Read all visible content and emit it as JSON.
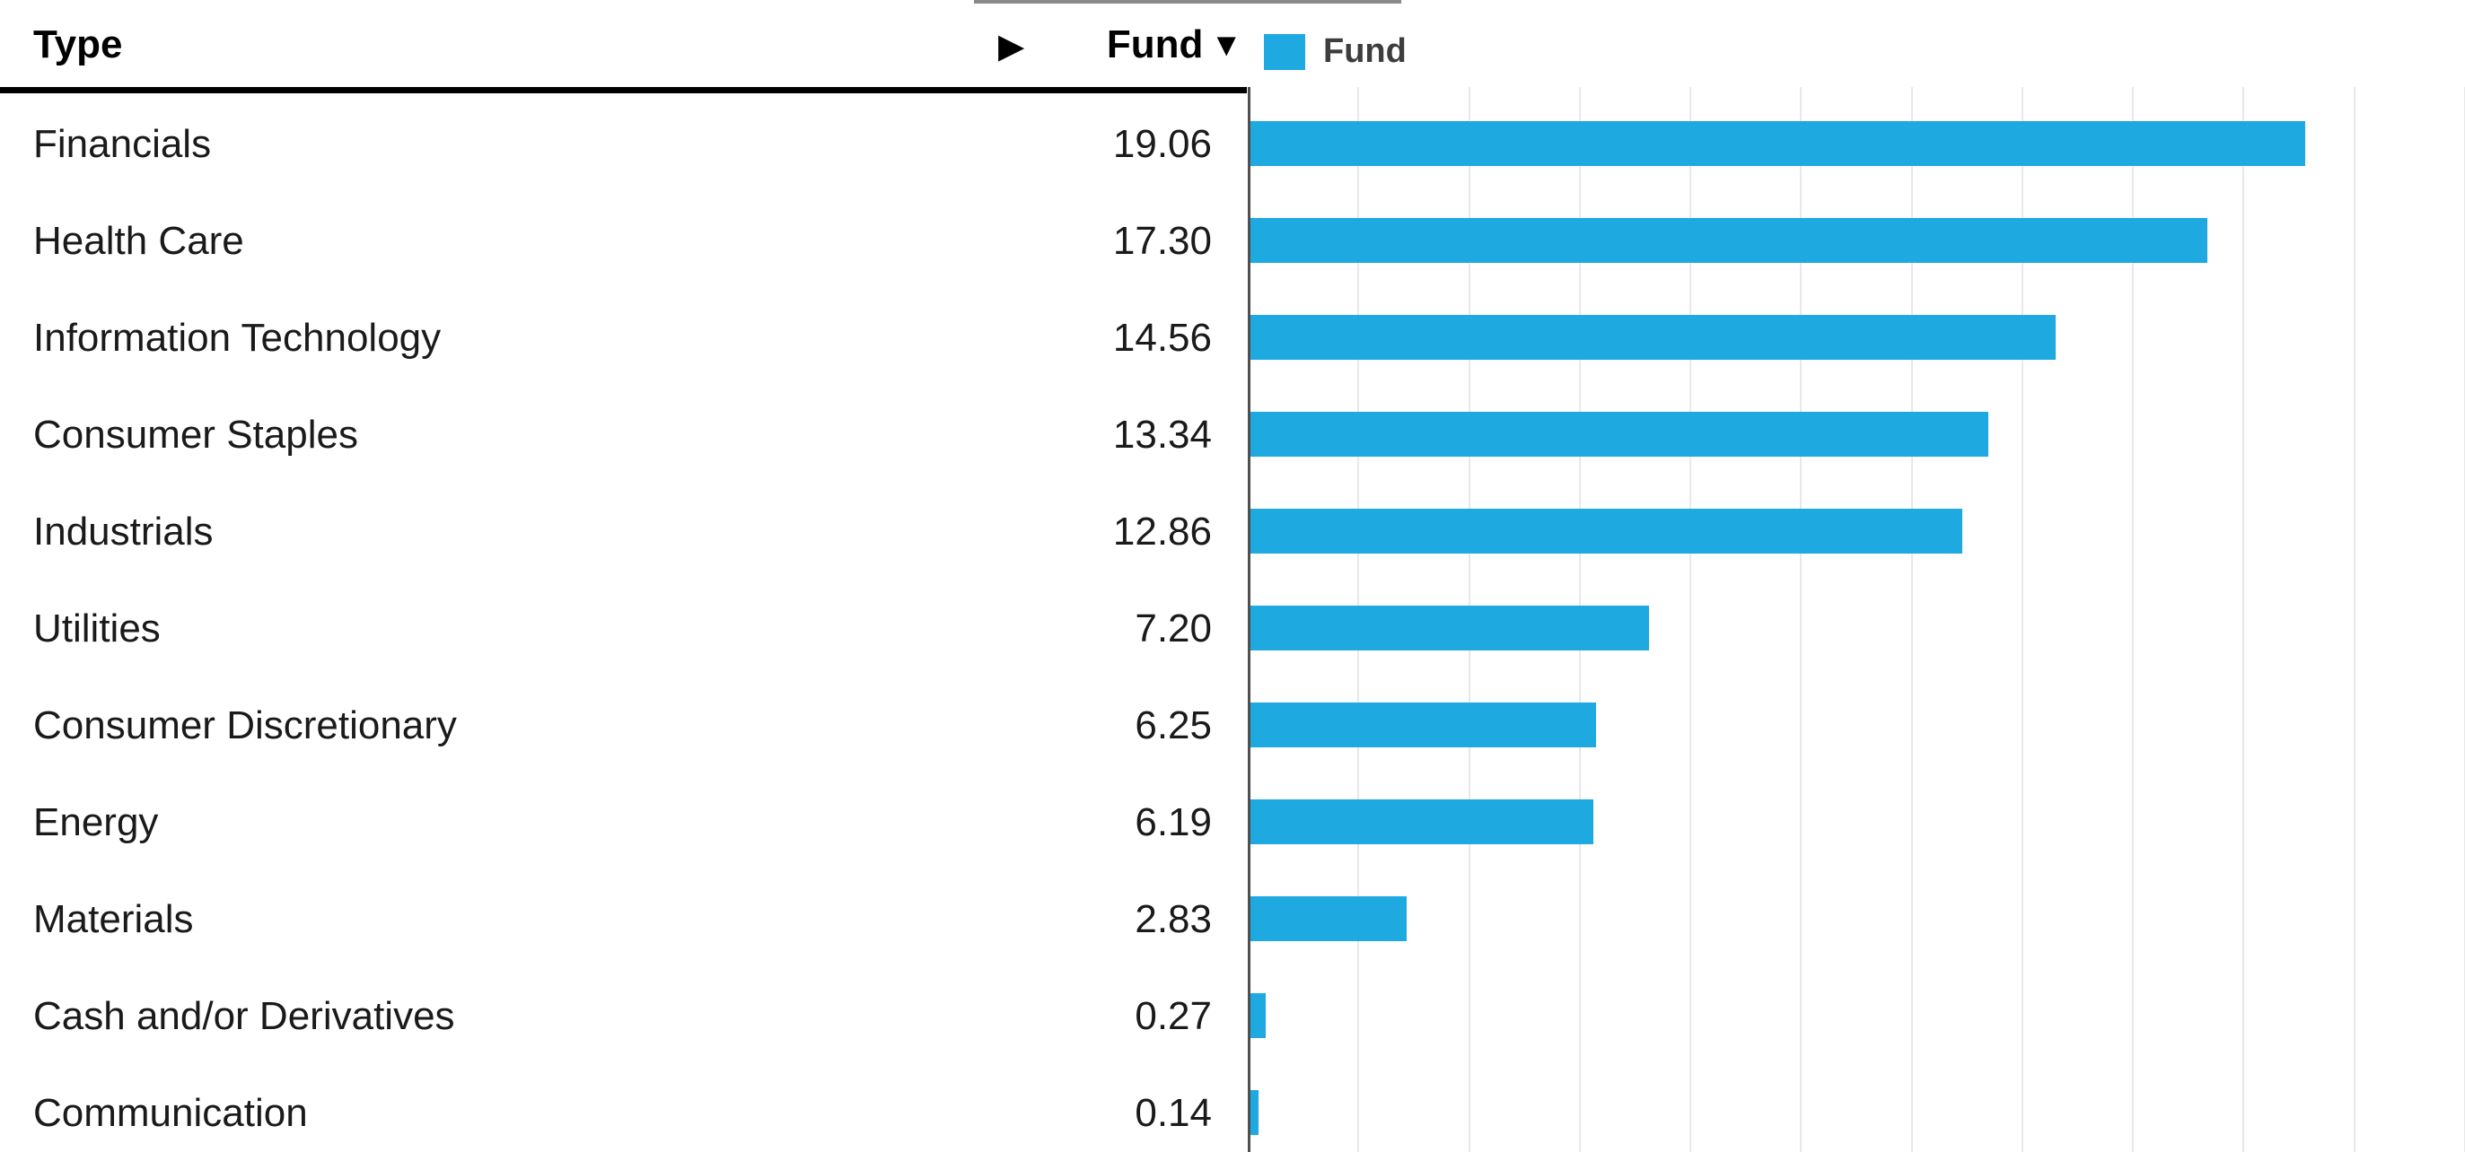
{
  "table": {
    "type_column_label": "Type",
    "fund_column_label": "Fund",
    "sort": {
      "column": "Fund",
      "direction": "desc",
      "icon": "▼"
    },
    "expand_icon": "▶",
    "rows": [
      {
        "type": "Financials",
        "fund": "19.06"
      },
      {
        "type": "Health Care",
        "fund": "17.30"
      },
      {
        "type": "Information Technology",
        "fund": "14.56"
      },
      {
        "type": "Consumer Staples",
        "fund": "13.34"
      },
      {
        "type": "Industrials",
        "fund": "12.86"
      },
      {
        "type": "Utilities",
        "fund": "7.20"
      },
      {
        "type": "Consumer Discretionary",
        "fund": "6.25"
      },
      {
        "type": "Energy",
        "fund": "6.19"
      },
      {
        "type": "Materials",
        "fund": "2.83"
      },
      {
        "type": "Cash and/or Derivatives",
        "fund": "0.27"
      },
      {
        "type": "Communication",
        "fund": "0.14"
      }
    ]
  },
  "legend": {
    "items": [
      {
        "label": "Fund",
        "color": "#1EA9E0"
      }
    ]
  },
  "chart_data": {
    "type": "bar",
    "orientation": "horizontal",
    "title": "",
    "categories": [
      "Financials",
      "Health Care",
      "Information Technology",
      "Consumer Staples",
      "Industrials",
      "Utilities",
      "Consumer Discretionary",
      "Energy",
      "Materials",
      "Cash and/or Derivatives",
      "Communication"
    ],
    "series": [
      {
        "name": "Fund",
        "values": [
          19.06,
          17.3,
          14.56,
          13.34,
          12.86,
          7.2,
          6.25,
          6.19,
          2.83,
          0.27,
          0.14
        ]
      }
    ],
    "xlabel": "",
    "ylabel": "Type",
    "xlim": [
      0,
      22
    ],
    "gridline_step": 2,
    "grid": true,
    "legend_position": "top-right",
    "bar_color": "#1EA9E0",
    "sorted": "descending by Fund"
  },
  "colors": {
    "bar": "#1EA9E0",
    "gridline": "#e8e8e8",
    "axis": "#4f4f4f",
    "header_text": "#000000",
    "row_text": "#1a1a1a",
    "legend_text": "#3d3d3d",
    "header_border": "#000000",
    "background": "#ffffff"
  }
}
